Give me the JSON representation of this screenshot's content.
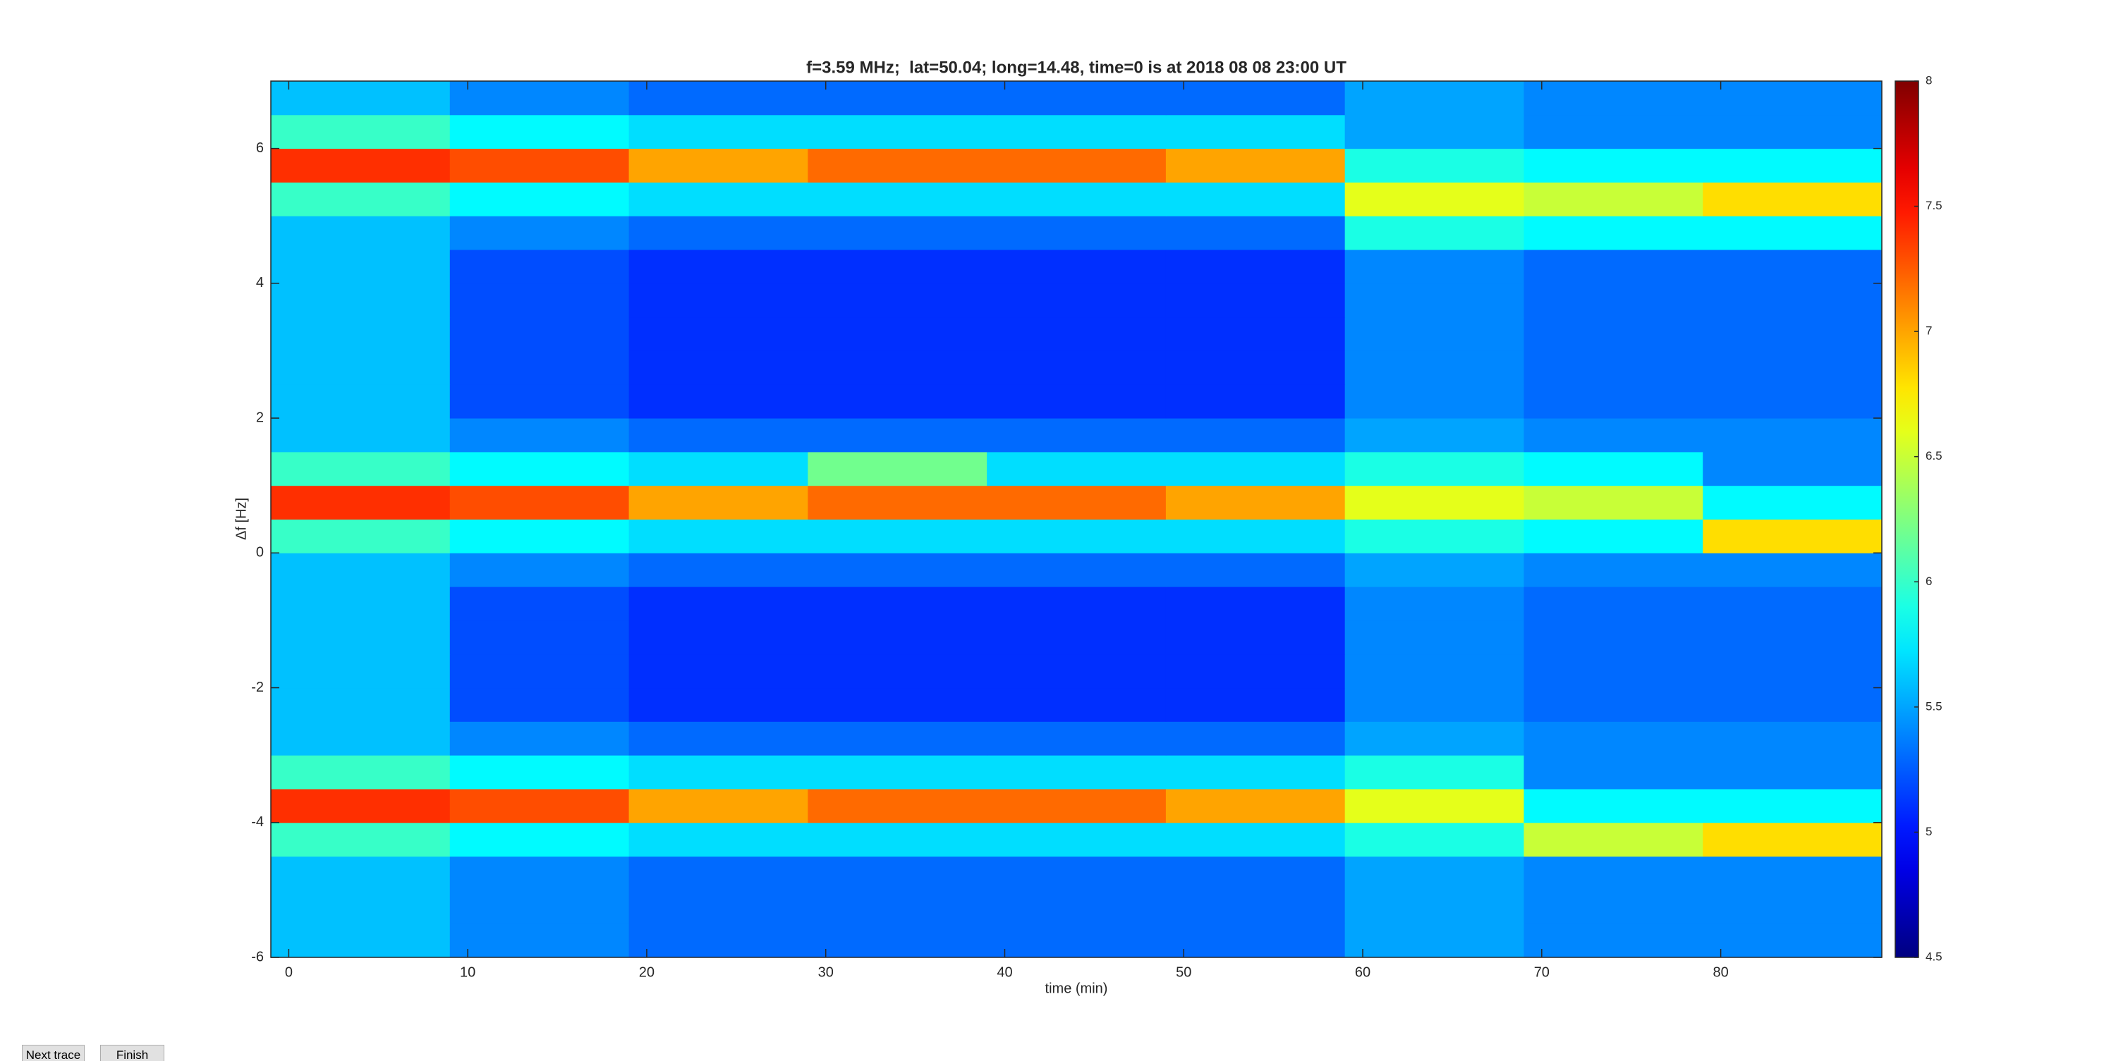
{
  "chart_data": {
    "type": "heatmap",
    "title": "f=3.59 MHz;  lat=50.04; long=14.48, time=0 is at 2018 08 08 23:00 UT",
    "xlabel": "time (min)",
    "ylabel": "Δf [Hz]",
    "xlim": [
      -1,
      89
    ],
    "ylim": [
      -6,
      7
    ],
    "xticks": [
      0,
      10,
      20,
      30,
      40,
      50,
      60,
      70,
      80
    ],
    "yticks": [
      -6,
      -4,
      -2,
      0,
      2,
      4,
      6
    ],
    "colormap": "jet",
    "zlim": [
      4.5,
      8
    ],
    "zticks": [
      4.5,
      5,
      5.5,
      6,
      6.5,
      7,
      7.5,
      8
    ],
    "x_bins": [
      -1,
      9,
      19,
      29,
      39,
      49,
      59,
      69,
      79,
      89
    ],
    "y_bins": [
      -6,
      -5.5,
      -5,
      -4.5,
      -4,
      -3.5,
      -3,
      -2.5,
      -2,
      -1.5,
      -1,
      -0.5,
      0,
      0.5,
      1,
      1.5,
      2,
      2.5,
      3,
      3.5,
      4,
      4.5,
      5,
      5.5,
      6,
      6.5,
      7
    ],
    "z": [
      [
        5.6,
        5.4,
        5.3,
        5.3,
        5.3,
        5.3,
        5.5,
        5.4,
        5.4
      ],
      [
        5.6,
        5.4,
        5.3,
        5.3,
        5.3,
        5.3,
        5.5,
        5.4,
        5.4
      ],
      [
        5.6,
        5.4,
        5.3,
        5.3,
        5.3,
        5.3,
        5.5,
        5.4,
        5.4
      ],
      [
        6.0,
        5.8,
        5.7,
        5.7,
        5.7,
        5.7,
        5.9,
        6.5,
        6.8
      ],
      [
        7.4,
        7.3,
        7.0,
        7.2,
        7.2,
        7.0,
        6.6,
        5.8,
        5.8
      ],
      [
        6.0,
        5.8,
        5.7,
        5.7,
        5.7,
        5.7,
        5.9,
        5.4,
        5.4
      ],
      [
        5.6,
        5.4,
        5.3,
        5.3,
        5.3,
        5.3,
        5.5,
        5.4,
        5.4
      ],
      [
        5.6,
        5.2,
        5.1,
        5.1,
        5.1,
        5.1,
        5.4,
        5.3,
        5.3
      ],
      [
        5.6,
        5.2,
        5.1,
        5.1,
        5.1,
        5.1,
        5.4,
        5.3,
        5.3
      ],
      [
        5.6,
        5.2,
        5.1,
        5.1,
        5.1,
        5.1,
        5.4,
        5.3,
        5.3
      ],
      [
        5.6,
        5.2,
        5.1,
        5.1,
        5.1,
        5.1,
        5.4,
        5.3,
        5.3
      ],
      [
        5.6,
        5.4,
        5.3,
        5.3,
        5.3,
        5.3,
        5.5,
        5.4,
        5.4
      ],
      [
        6.0,
        5.8,
        5.7,
        5.7,
        5.7,
        5.7,
        5.9,
        5.8,
        6.8
      ],
      [
        7.4,
        7.3,
        7.0,
        7.2,
        7.2,
        7.0,
        6.6,
        6.5,
        5.8
      ],
      [
        6.0,
        5.8,
        5.7,
        6.2,
        5.7,
        5.7,
        5.9,
        5.8,
        5.4
      ],
      [
        5.6,
        5.4,
        5.3,
        5.3,
        5.3,
        5.3,
        5.5,
        5.4,
        5.4
      ],
      [
        5.6,
        5.2,
        5.1,
        5.1,
        5.1,
        5.1,
        5.4,
        5.3,
        5.3
      ],
      [
        5.6,
        5.2,
        5.1,
        5.1,
        5.1,
        5.1,
        5.4,
        5.3,
        5.3
      ],
      [
        5.6,
        5.2,
        5.1,
        5.1,
        5.1,
        5.1,
        5.4,
        5.3,
        5.3
      ],
      [
        5.6,
        5.2,
        5.1,
        5.1,
        5.1,
        5.1,
        5.4,
        5.3,
        5.3
      ],
      [
        5.6,
        5.2,
        5.1,
        5.1,
        5.1,
        5.1,
        5.4,
        5.3,
        5.3
      ],
      [
        5.6,
        5.4,
        5.3,
        5.3,
        5.3,
        5.3,
        5.9,
        5.8,
        5.8
      ],
      [
        6.0,
        5.8,
        5.7,
        5.7,
        5.7,
        5.7,
        6.6,
        6.5,
        6.8
      ],
      [
        7.4,
        7.3,
        7.0,
        7.2,
        7.2,
        7.0,
        5.9,
        5.8,
        5.8
      ],
      [
        6.0,
        5.8,
        5.7,
        5.7,
        5.7,
        5.7,
        5.5,
        5.4,
        5.4
      ],
      [
        5.6,
        5.4,
        5.3,
        5.3,
        5.3,
        5.3,
        5.5,
        5.4,
        5.4
      ]
    ]
  },
  "buttons": [
    "Next trace",
    "Finish"
  ]
}
